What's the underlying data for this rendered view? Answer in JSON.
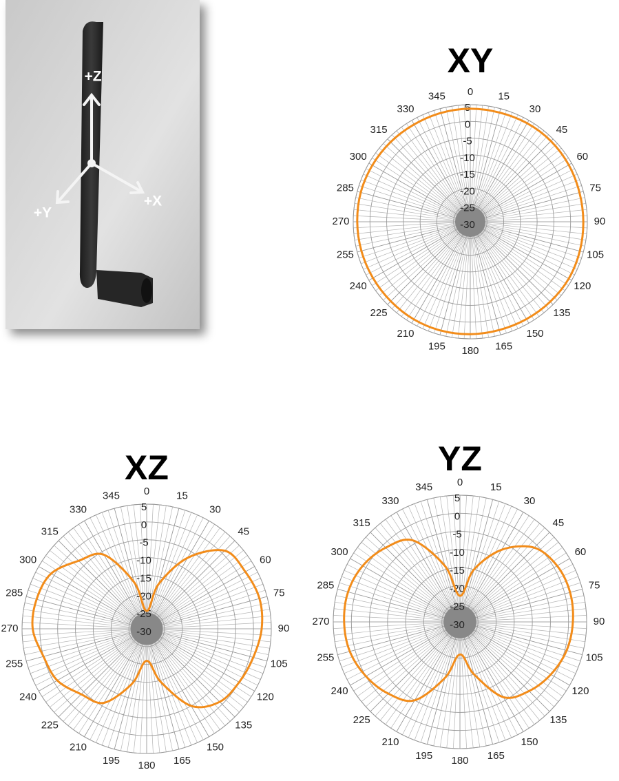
{
  "photo": {
    "labels": [
      "+Z",
      "+X",
      "+Y"
    ]
  },
  "chart_data": [
    {
      "type": "polar",
      "title": "XY",
      "color": "#f28c1a",
      "theta": [
        0,
        15,
        30,
        45,
        60,
        75,
        90,
        105,
        120,
        135,
        150,
        165,
        180,
        195,
        210,
        225,
        240,
        255,
        270,
        285,
        300,
        315,
        330,
        345
      ],
      "values": [
        3.8,
        3.8,
        4,
        4.1,
        4,
        3.8,
        3.8,
        3.9,
        4,
        3.8,
        3.6,
        3.5,
        3.6,
        3.7,
        3.7,
        3.6,
        3.6,
        3.7,
        3.8,
        3.9,
        3.8,
        3.7,
        3.6,
        3.7
      ],
      "rlim": [
        -30,
        5
      ],
      "rticks": [
        -30,
        -25,
        -20,
        -15,
        -10,
        -5,
        0,
        5
      ],
      "thetaticks": [
        0,
        15,
        30,
        45,
        60,
        75,
        90,
        105,
        120,
        135,
        150,
        165,
        180,
        195,
        210,
        225,
        240,
        255,
        270,
        285,
        300,
        315,
        330,
        345
      ]
    },
    {
      "type": "polar",
      "title": "XZ",
      "color": "#f28c1a",
      "theta": [
        0,
        15,
        30,
        45,
        60,
        75,
        90,
        105,
        120,
        135,
        150,
        165,
        180,
        195,
        210,
        225,
        240,
        255,
        270,
        285,
        300,
        315,
        330,
        345
      ],
      "values": [
        -25,
        -17,
        -7,
        1,
        2,
        2.8,
        2.3,
        1,
        0,
        -1,
        -5,
        -14.5,
        -21,
        -14,
        -6,
        -4,
        -1,
        0,
        2,
        2,
        1,
        -3,
        -6,
        -16.5
      ],
      "rlim": [
        -30,
        5
      ],
      "rticks": [
        -30,
        -25,
        -20,
        -15,
        -10,
        -5,
        0,
        5
      ],
      "thetaticks": [
        0,
        15,
        30,
        45,
        60,
        75,
        90,
        105,
        120,
        135,
        150,
        165,
        180,
        195,
        210,
        225,
        240,
        255,
        270,
        285,
        300,
        315,
        330,
        345
      ]
    },
    {
      "type": "polar",
      "title": "YZ",
      "color": "#f28c1a",
      "theta": [
        0,
        15,
        30,
        45,
        60,
        75,
        90,
        105,
        120,
        135,
        150,
        165,
        180,
        195,
        210,
        225,
        240,
        255,
        270,
        285,
        300,
        315,
        330,
        345
      ],
      "values": [
        -22.8,
        -15,
        -7,
        -1,
        1,
        1.5,
        1.2,
        0.5,
        -1,
        -3,
        -6,
        -15,
        -21,
        -14,
        -5,
        -2,
        0,
        1.5,
        2,
        2,
        1,
        -1,
        -4,
        -14
      ],
      "rlim": [
        -30,
        5
      ],
      "rticks": [
        -30,
        -25,
        -20,
        -15,
        -10,
        -5,
        0,
        5
      ],
      "thetaticks": [
        0,
        15,
        30,
        45,
        60,
        75,
        90,
        105,
        120,
        135,
        150,
        165,
        180,
        195,
        210,
        225,
        240,
        255,
        270,
        285,
        300,
        315,
        330,
        345
      ]
    }
  ]
}
